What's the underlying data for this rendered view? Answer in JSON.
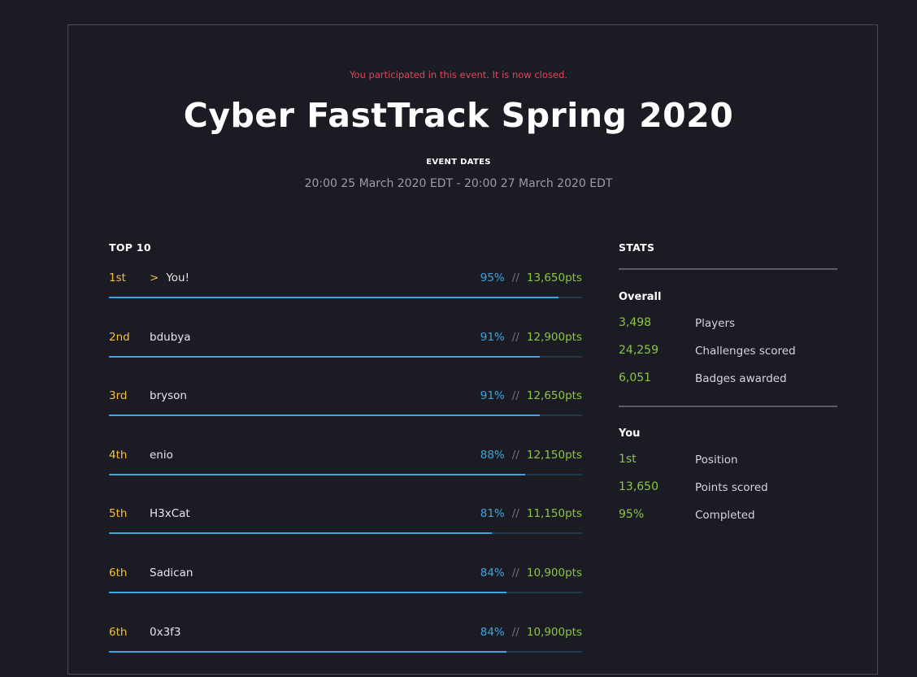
{
  "notice": "You participated in this event. It is now closed.",
  "title": "Cyber FastTrack Spring 2020",
  "event_dates": {
    "label": "EVENT DATES",
    "value": "20:00 25 March 2020 EDT - 20:00 27 March 2020 EDT"
  },
  "leaderboard": {
    "heading": "TOP 10",
    "separator": "//",
    "you_marker": ">",
    "rows": [
      {
        "rank": "1st",
        "name": "You!",
        "percent": "95%",
        "points": "13,650pts",
        "progress": 0.95,
        "is_you": true
      },
      {
        "rank": "2nd",
        "name": "bdubya",
        "percent": "91%",
        "points": "12,900pts",
        "progress": 0.91,
        "is_you": false
      },
      {
        "rank": "3rd",
        "name": "bryson",
        "percent": "91%",
        "points": "12,650pts",
        "progress": 0.91,
        "is_you": false
      },
      {
        "rank": "4th",
        "name": "enio",
        "percent": "88%",
        "points": "12,150pts",
        "progress": 0.88,
        "is_you": false
      },
      {
        "rank": "5th",
        "name": "H3xCat",
        "percent": "81%",
        "points": "11,150pts",
        "progress": 0.81,
        "is_you": false
      },
      {
        "rank": "6th",
        "name": "Sadican",
        "percent": "84%",
        "points": "10,900pts",
        "progress": 0.84,
        "is_you": false
      },
      {
        "rank": "6th",
        "name": "0x3f3",
        "percent": "84%",
        "points": "10,900pts",
        "progress": 0.84,
        "is_you": false
      }
    ]
  },
  "stats": {
    "heading": "STATS",
    "overall": {
      "title": "Overall",
      "items": [
        {
          "value": "3,498",
          "label": "Players"
        },
        {
          "value": "24,259",
          "label": "Challenges scored"
        },
        {
          "value": "6,051",
          "label": "Badges awarded"
        }
      ]
    },
    "you": {
      "title": "You",
      "items": [
        {
          "value": "1st",
          "label": "Position"
        },
        {
          "value": "13,650",
          "label": "Points scored"
        },
        {
          "value": "95%",
          "label": "Completed"
        }
      ]
    }
  },
  "colors": {
    "background": "#1b1c23",
    "notice": "#e0455c",
    "rank": "#f0c03c",
    "percent": "#3aa6e0",
    "points": "#8cc63f"
  }
}
